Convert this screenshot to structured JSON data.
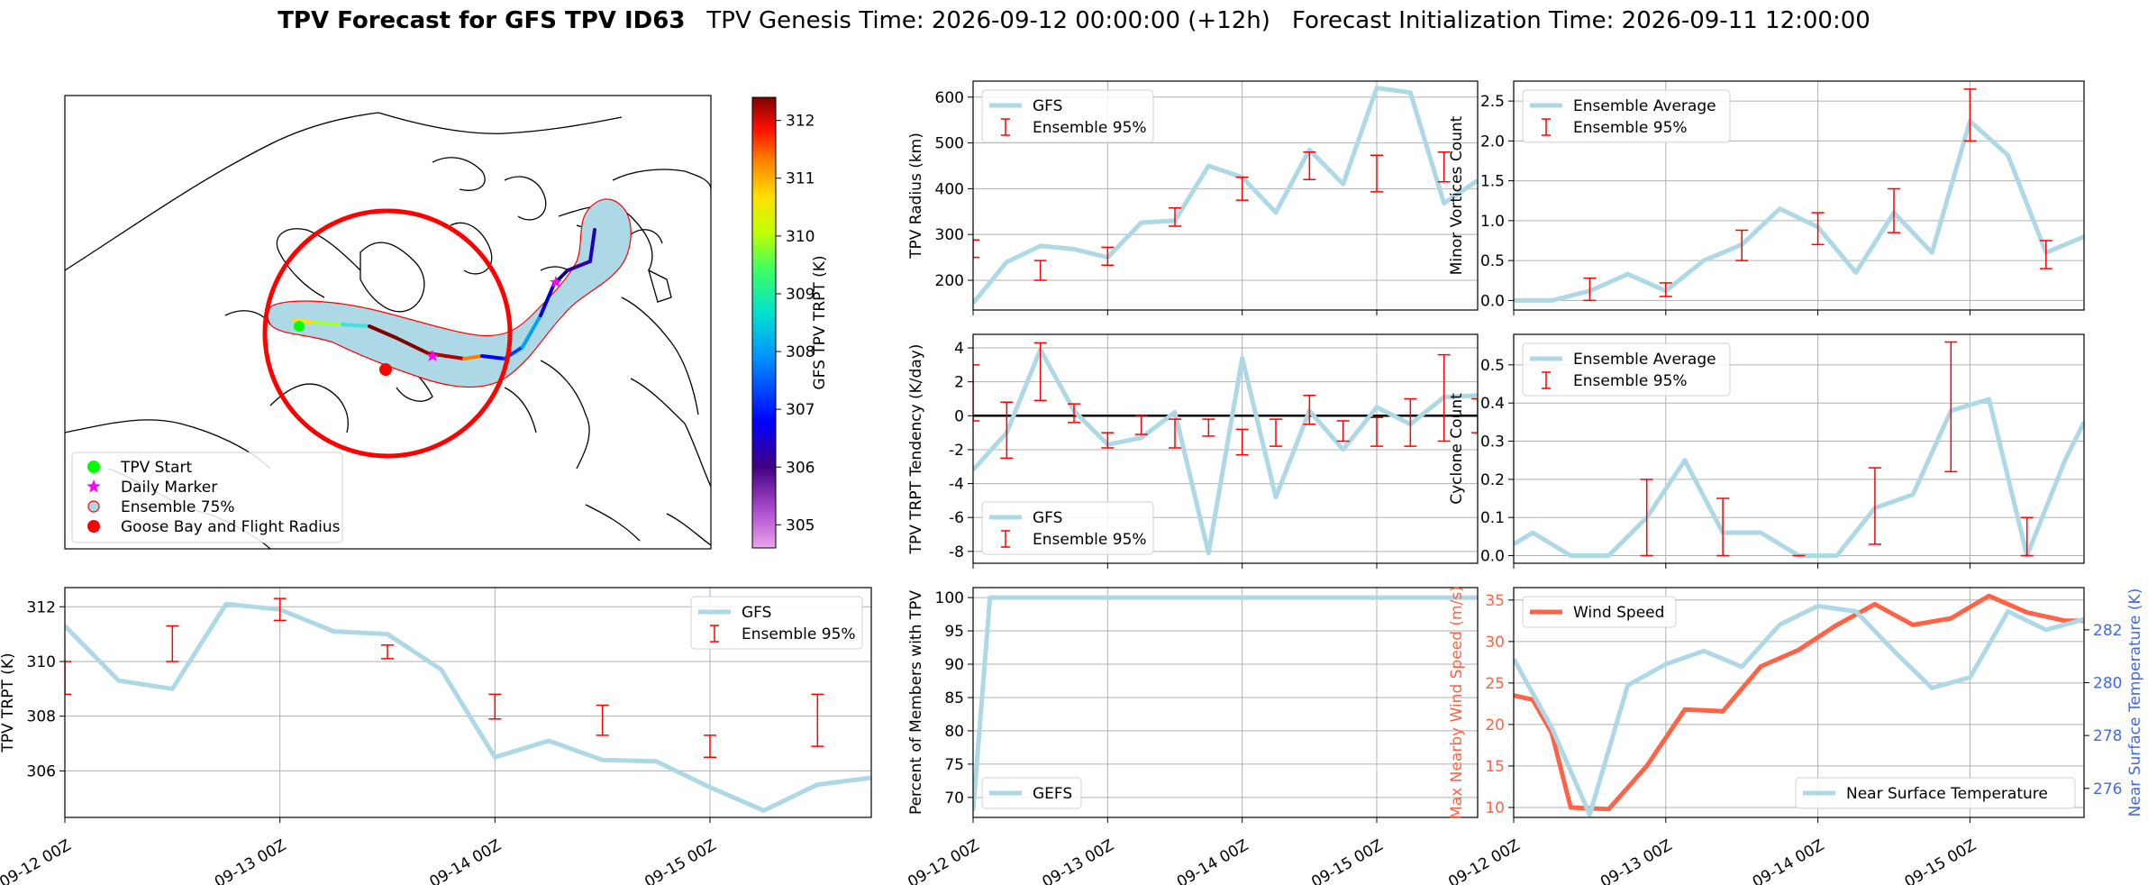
{
  "header": {
    "title_bold": "TPV Forecast for GFS TPV ID63",
    "genesis": "TPV Genesis Time: 2026-09-12 00:00:00 (+12h)",
    "init": "Forecast Initialization Time: 2026-09-11 12:00:00"
  },
  "colors": {
    "series": "#add8e6",
    "error": "#ff0000",
    "wind": "#ff6347",
    "temp_axis": "#4169e1",
    "grid": "#b0b0b0"
  },
  "map": {
    "colorbar_label": "GFS TPV TRPT (K)",
    "colorbar_ticks": [
      305,
      306,
      307,
      308,
      309,
      310,
      311,
      312
    ],
    "colorbar_range": [
      304.6,
      312.4
    ],
    "legend": [
      {
        "label": "TPV Start",
        "marker": "circle",
        "color": "#00ff00"
      },
      {
        "label": "Daily Marker",
        "marker": "star",
        "color": "#ff00ff"
      },
      {
        "label": "Ensemble 75%",
        "marker": "circle-outline",
        "color": "#add8e6"
      },
      {
        "label": "Goose Bay and Flight Radius",
        "marker": "circle",
        "color": "#ff0000"
      }
    ]
  },
  "chart_data": [
    {
      "id": "trpt",
      "type": "line",
      "ylabel": "TPV TRPT (K)",
      "x_ticks": [
        "09-12 00Z",
        "09-13 00Z",
        "09-14 00Z",
        "09-15 00Z"
      ],
      "xlim": [
        0,
        90
      ],
      "ylim": [
        304.3,
        312.7
      ],
      "y_ticks": [
        306,
        308,
        310,
        312
      ],
      "grid": true,
      "legend_position": "top-right",
      "series": [
        {
          "name": "GFS",
          "x": [
            0,
            6,
            12,
            18,
            24,
            30,
            36,
            42,
            48,
            54,
            60,
            66,
            72,
            78,
            84,
            90
          ],
          "values": [
            311.3,
            309.3,
            309.0,
            312.1,
            311.9,
            311.1,
            311.0,
            309.7,
            306.5,
            307.1,
            306.4,
            306.35,
            305.4,
            304.55,
            305.5,
            305.75
          ]
        }
      ],
      "error_bars": {
        "name": "Ensemble 95%",
        "x": [
          0,
          12,
          24,
          36,
          48,
          60,
          72,
          84
        ],
        "low": [
          308.8,
          310.0,
          311.5,
          310.1,
          307.9,
          307.3,
          306.5,
          306.9
        ],
        "high": [
          310.0,
          311.3,
          312.3,
          310.6,
          308.8,
          308.4,
          307.3,
          308.8
        ]
      }
    },
    {
      "id": "radius",
      "type": "line",
      "ylabel": "TPV Radius (km)",
      "xlim": [
        0,
        90
      ],
      "ylim": [
        135,
        635
      ],
      "y_ticks": [
        200,
        300,
        400,
        500,
        600
      ],
      "grid": true,
      "legend_position": "top-left",
      "series": [
        {
          "name": "GFS",
          "x": [
            0,
            6,
            12,
            18,
            24,
            30,
            36,
            42,
            48,
            54,
            60,
            66,
            72,
            78,
            84,
            90
          ],
          "values": [
            150,
            240,
            275,
            268,
            250,
            326,
            330,
            450,
            425,
            348,
            485,
            410,
            620,
            610,
            368,
            418
          ]
        }
      ],
      "error_bars": {
        "name": "Ensemble 95%",
        "x": [
          0,
          12,
          24,
          36,
          48,
          60,
          72,
          84
        ],
        "low": [
          250,
          200,
          233,
          318,
          375,
          420,
          393,
          415
        ],
        "high": [
          288,
          243,
          272,
          358,
          425,
          480,
          473,
          480
        ]
      }
    },
    {
      "id": "tendency",
      "type": "line",
      "ylabel": "TPV TRPT Tendency (K/day)",
      "xlim": [
        0,
        90
      ],
      "ylim": [
        -8.7,
        4.8
      ],
      "y_ticks": [
        -8,
        -6,
        -4,
        -2,
        0,
        2,
        4
      ],
      "grid": true,
      "zero_line": true,
      "legend_position": "bottom-left",
      "series": [
        {
          "name": "GFS",
          "x": [
            0,
            6,
            12,
            18,
            24,
            30,
            36,
            42,
            48,
            54,
            60,
            66,
            72,
            78,
            84,
            90
          ],
          "values": [
            -3.2,
            -1.0,
            3.9,
            0.3,
            -1.7,
            -1.3,
            0.2,
            -8.1,
            3.4,
            -4.8,
            0.3,
            -2.0,
            0.5,
            -0.5,
            1.1,
            1.2
          ]
        }
      ],
      "error_bars": {
        "name": "Ensemble 95%",
        "x": [
          0,
          6,
          12,
          18,
          24,
          30,
          36,
          42,
          48,
          54,
          60,
          66,
          72,
          78,
          84,
          90
        ],
        "low": [
          -0.3,
          -2.5,
          0.9,
          -0.4,
          -1.9,
          -1.1,
          -1.9,
          -1.2,
          -2.3,
          -1.8,
          -0.5,
          -1.5,
          -1.8,
          -1.8,
          -1.5,
          -1.0
        ],
        "high": [
          3.0,
          0.8,
          4.3,
          0.7,
          -1.0,
          0.0,
          -0.2,
          -0.2,
          -0.8,
          -0.2,
          1.2,
          -0.3,
          -0.1,
          1.0,
          3.6,
          1.0
        ]
      }
    },
    {
      "id": "members",
      "type": "line",
      "ylabel": "Percent of Members with TPV",
      "xlim": [
        0,
        90
      ],
      "ylim": [
        67,
        101.5
      ],
      "y_ticks": [
        70,
        75,
        80,
        85,
        90,
        95,
        100
      ],
      "grid": true,
      "legend_position": "bottom-left",
      "series": [
        {
          "name": "GEFS",
          "x": [
            0,
            3,
            6,
            90
          ],
          "values": [
            68,
            100,
            100,
            100
          ]
        }
      ]
    },
    {
      "id": "minor",
      "type": "line",
      "ylabel": "Minor Vortices Count",
      "xlim": [
        0,
        90
      ],
      "ylim": [
        -0.12,
        2.75
      ],
      "y_ticks": [
        0.0,
        0.5,
        1.0,
        1.5,
        2.0,
        2.5
      ],
      "grid": true,
      "legend_position": "top-left",
      "series": [
        {
          "name": "Ensemble Average",
          "x": [
            0,
            6,
            12,
            18,
            24,
            30,
            36,
            42,
            48,
            54,
            60,
            66,
            72,
            78,
            84,
            90
          ],
          "values": [
            0.0,
            0.0,
            0.12,
            0.33,
            0.12,
            0.5,
            0.7,
            1.15,
            0.92,
            0.35,
            1.1,
            0.6,
            2.25,
            1.82,
            0.6,
            0.8
          ]
        }
      ],
      "error_bars": {
        "name": "Ensemble 95%",
        "x": [
          12,
          24,
          36,
          48,
          60,
          72,
          84
        ],
        "low": [
          0.0,
          0.05,
          0.5,
          0.7,
          0.85,
          2.0,
          0.4
        ],
        "high": [
          0.28,
          0.22,
          0.88,
          1.1,
          1.4,
          2.65,
          0.75
        ]
      }
    },
    {
      "id": "cyclone",
      "type": "line",
      "ylabel": "Cyclone Count",
      "xlim": [
        0,
        90
      ],
      "ylim": [
        -0.02,
        0.58
      ],
      "y_ticks": [
        0.0,
        0.1,
        0.2,
        0.3,
        0.4,
        0.5
      ],
      "grid": true,
      "legend_position": "top-left",
      "series": [
        {
          "name": "Ensemble Average",
          "x": [
            0,
            3,
            9,
            15,
            21,
            27,
            33,
            39,
            45,
            51,
            57,
            63,
            69,
            75,
            81,
            87,
            90
          ],
          "values": [
            0.03,
            0.06,
            0.0,
            0.0,
            0.1,
            0.25,
            0.06,
            0.06,
            0.0,
            0.0,
            0.125,
            0.16,
            0.38,
            0.41,
            0.0,
            0.25,
            0.35
          ]
        }
      ],
      "error_bars": {
        "name": "Ensemble 95%",
        "x": [
          21,
          33,
          45,
          57,
          69,
          81
        ],
        "low": [
          0.0,
          0.0,
          0.0,
          0.03,
          0.22,
          0.0
        ],
        "high": [
          0.2,
          0.15,
          0.0,
          0.23,
          0.56,
          0.1
        ]
      }
    },
    {
      "id": "wind",
      "type": "line",
      "ylabel": "Max Nearby Wind Speed (m/s)",
      "y2label": "Near Surface Temperature (K)",
      "xlim": [
        0,
        90
      ],
      "ylim": [
        8.8,
        36.5
      ],
      "y_ticks": [
        10,
        15,
        20,
        25,
        30,
        35
      ],
      "y2lim": [
        274.9,
        283.6
      ],
      "y2_ticks": [
        276,
        278,
        280,
        282
      ],
      "grid": true,
      "series": [
        {
          "name": "Wind Speed",
          "axis": "left",
          "legend_position": "top-left",
          "x": [
            0,
            3,
            6,
            9,
            15,
            21,
            27,
            33,
            39,
            45,
            51,
            57,
            63,
            69,
            75,
            81,
            87,
            90
          ],
          "values": [
            23.5,
            23.0,
            19.0,
            10.0,
            9.8,
            15.0,
            21.8,
            21.6,
            27.0,
            29.0,
            32.0,
            34.5,
            32.0,
            32.8,
            35.5,
            33.5,
            32.5,
            32.5
          ]
        },
        {
          "name": "Near Surface Temperature",
          "axis": "right",
          "legend_position": "bottom-right",
          "x": [
            0,
            6,
            12,
            18,
            24,
            30,
            36,
            42,
            48,
            54,
            60,
            66,
            72,
            78,
            84,
            90
          ],
          "values": [
            280.9,
            278.3,
            275.0,
            279.9,
            280.7,
            281.2,
            280.6,
            282.2,
            282.9,
            282.7,
            281.2,
            279.8,
            280.2,
            282.7,
            282.0,
            282.4
          ]
        }
      ]
    }
  ]
}
